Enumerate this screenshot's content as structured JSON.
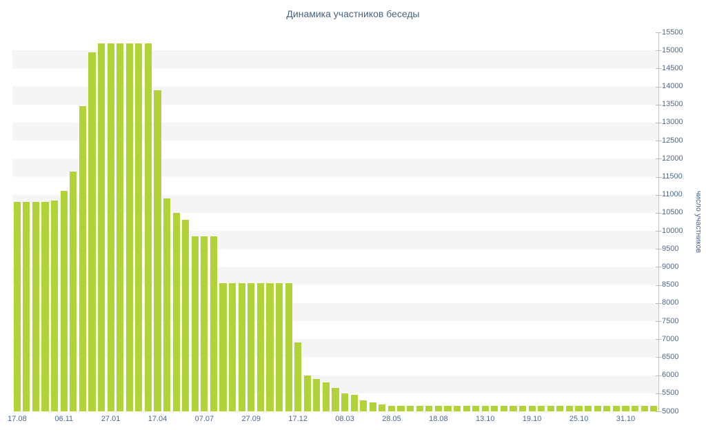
{
  "chart_data": {
    "type": "bar",
    "title": "Динамика участников беседы",
    "ylabel": "число участников",
    "xlabel": "",
    "legend": "none",
    "grid": "striped-bands",
    "bar_color": "#b2d23a",
    "stripe_color": "#f5f5f5",
    "axis_color": "#c4c4c4",
    "tick_mark_color": "#b8b8b8",
    "text_color": "#4a6893",
    "title_color": "#47637f",
    "ylim": [
      5000,
      15500
    ],
    "ytick_step": 500,
    "yticks": [
      5000,
      5500,
      6000,
      6500,
      7000,
      7500,
      8000,
      8500,
      9000,
      9500,
      10000,
      10500,
      11000,
      11500,
      12000,
      12500,
      13000,
      13500,
      14000,
      14500,
      15000,
      15500
    ],
    "x_labels": [
      "17.08",
      "06.11",
      "27.01",
      "17.04",
      "07.07",
      "27.09",
      "17.12",
      "08.03",
      "28.05",
      "18.08",
      "13.10",
      "19.10",
      "25.10",
      "31.10"
    ],
    "x_label_every": 5,
    "values": [
      10800,
      10800,
      10800,
      10800,
      10850,
      11100,
      11650,
      13450,
      14950,
      15200,
      15200,
      15200,
      15200,
      15200,
      15200,
      13900,
      10900,
      10500,
      10300,
      9850,
      9850,
      9850,
      8550,
      8550,
      8550,
      8550,
      8550,
      8550,
      8550,
      8550,
      6900,
      6000,
      5900,
      5800,
      5650,
      5500,
      5450,
      5300,
      5250,
      5200,
      5150,
      5150,
      5150,
      5150,
      5150,
      5150,
      5150,
      5150,
      5150,
      5150,
      5150,
      5150,
      5150,
      5150,
      5150,
      5150,
      5150,
      5150,
      5150,
      5150,
      5150,
      5150,
      5150,
      5150,
      5150,
      5150,
      5150,
      5150,
      5150
    ]
  }
}
